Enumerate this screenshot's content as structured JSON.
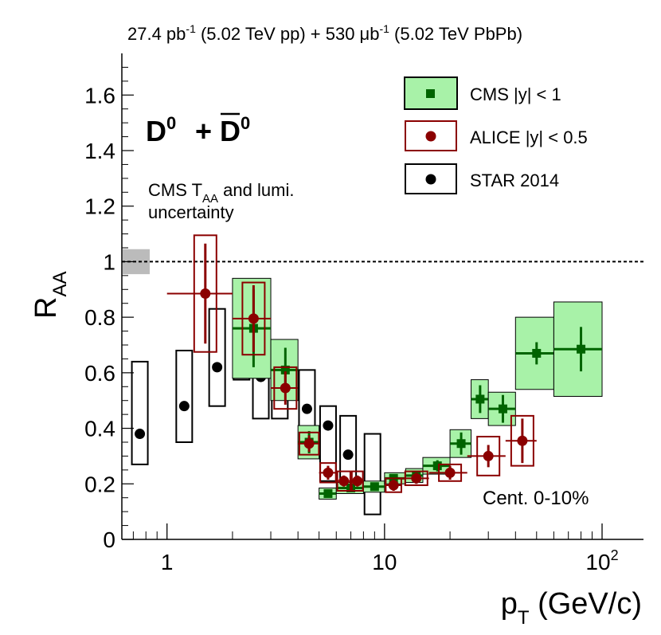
{
  "chart_data": {
    "type": "scatter",
    "top_label": {
      "part1": "27.4 pb",
      "sup1": "-1",
      "part2": " (5.02 TeV pp) + 530 μb",
      "sup2": "-1",
      "part3": " (5.02 TeV PbPb)"
    },
    "particle_label": {
      "base": "D",
      "sup": "0",
      "plus": "+",
      "bar_base": "D",
      "bar_sup": "0"
    },
    "tag_label_1": {
      "prefix": "CMS T",
      "sub": "AA",
      "suffix": " and lumi."
    },
    "tag_label_2": "uncertainty",
    "centrality": "Cent. 0-10%",
    "xlabel": {
      "base": "p",
      "sub": "T",
      "rest": " (GeV/c)"
    },
    "ylabel": {
      "base": "R",
      "sub": "AA"
    },
    "x_scale": "log",
    "xlim": [
      0.62,
      155
    ],
    "ylim": [
      0,
      1.75
    ],
    "x_major_ticks": [
      1,
      10,
      100
    ],
    "x_tick_labels": {
      "t1": "1",
      "t10": "10",
      "t100_base": "10",
      "t100_exp": "2"
    },
    "y_major_ticks": [
      0,
      0.2,
      0.4,
      0.6,
      0.8,
      1,
      1.2,
      1.4,
      1.6
    ],
    "y_tick_labels": [
      "0",
      "0.2",
      "0.4",
      "0.6",
      "0.8",
      "1",
      "1.2",
      "1.4",
      "1.6"
    ],
    "reference_line": 1,
    "global_uncertainty": {
      "center": 1,
      "half_height": 0.045,
      "color": "#bbbbbb"
    },
    "legend": [
      {
        "label": "CMS |y| < 1",
        "marker": "square",
        "marker_color": "#006400",
        "box_fill": "#a8f2a8",
        "box_stroke": "#000000"
      },
      {
        "label": "ALICE |y| < 0.5",
        "marker": "circle",
        "marker_color": "#8b0000",
        "box_fill": "none",
        "box_stroke": "#8b0000"
      },
      {
        "label": "STAR 2014",
        "marker": "circle",
        "marker_color": "#000000",
        "box_fill": "none",
        "box_stroke": "#000000"
      }
    ],
    "series": [
      {
        "name": "CMS |y| < 1",
        "color": "#006400",
        "sys_fill": "#a8f2a8",
        "sys_stroke": "#000000",
        "points": [
          {
            "x": 2.5,
            "y": 0.76,
            "xlo": 2.0,
            "xhi": 3.0,
            "stat": 0.14,
            "sys": 0.18
          },
          {
            "x": 3.5,
            "y": 0.61,
            "xlo": 3.0,
            "xhi": 4.0,
            "stat": 0.08,
            "sys": 0.11
          },
          {
            "x": 4.5,
            "y": 0.35,
            "xlo": 4.0,
            "xhi": 5.0,
            "stat": 0.04,
            "sys": 0.06
          },
          {
            "x": 5.5,
            "y": 0.165,
            "xlo": 5.0,
            "xhi": 6.0,
            "stat": 0.01,
            "sys": 0.02
          },
          {
            "x": 7.0,
            "y": 0.185,
            "xlo": 6.0,
            "xhi": 8.0,
            "stat": 0.01,
            "sys": 0.02
          },
          {
            "x": 9.0,
            "y": 0.19,
            "xlo": 8.0,
            "xhi": 10.0,
            "stat": 0.01,
            "sys": 0.02
          },
          {
            "x": 11.0,
            "y": 0.22,
            "xlo": 10.0,
            "xhi": 12.5,
            "stat": 0.01,
            "sys": 0.02
          },
          {
            "x": 14.0,
            "y": 0.23,
            "xlo": 12.5,
            "xhi": 15.0,
            "stat": 0.015,
            "sys": 0.025
          },
          {
            "x": 17.5,
            "y": 0.265,
            "xlo": 15.0,
            "xhi": 20.0,
            "stat": 0.02,
            "sys": 0.03
          },
          {
            "x": 22.5,
            "y": 0.345,
            "xlo": 20.0,
            "xhi": 25.0,
            "stat": 0.04,
            "sys": 0.05
          },
          {
            "x": 27.5,
            "y": 0.505,
            "xlo": 25.0,
            "xhi": 30.0,
            "stat": 0.05,
            "sys": 0.07
          },
          {
            "x": 35.0,
            "y": 0.47,
            "xlo": 30.0,
            "xhi": 40.0,
            "stat": 0.05,
            "sys": 0.06
          },
          {
            "x": 50.0,
            "y": 0.67,
            "xlo": 40.0,
            "xhi": 60.0,
            "stat": 0.04,
            "sys": 0.13
          },
          {
            "x": 80.0,
            "y": 0.685,
            "xlo": 60.0,
            "xhi": 100.0,
            "stat": 0.08,
            "sys": 0.17
          }
        ]
      },
      {
        "name": "ALICE |y| < 0.5",
        "color": "#8b0000",
        "sys_fill": "none",
        "sys_stroke": "#8b0000",
        "points": [
          {
            "x": 1.5,
            "y": 0.885,
            "xlo": 1.0,
            "xhi": 2.0,
            "stat": 0.18,
            "sys": 0.21,
            "box_half": 0.1
          },
          {
            "x": 2.5,
            "y": 0.795,
            "xlo": 2.0,
            "xhi": 3.0,
            "stat": 0.12,
            "sys": 0.13,
            "box_half": 0.1
          },
          {
            "x": 3.5,
            "y": 0.545,
            "xlo": 3.0,
            "xhi": 4.0,
            "stat": 0.06,
            "sys": 0.075,
            "box_half": 0.1
          },
          {
            "x": 4.5,
            "y": 0.345,
            "xlo": 4.0,
            "xhi": 5.0,
            "stat": 0.03,
            "sys": 0.04,
            "box_half": 0.1
          },
          {
            "x": 5.5,
            "y": 0.24,
            "xlo": 5.0,
            "xhi": 6.0,
            "stat": 0.025,
            "sys": 0.035,
            "box_half": 0.1
          },
          {
            "x": 6.5,
            "y": 0.21,
            "xlo": 6.0,
            "xhi": 7.0,
            "stat": 0.02,
            "sys": 0.035,
            "box_half": 0.1
          },
          {
            "x": 7.5,
            "y": 0.21,
            "xlo": 7.0,
            "xhi": 8.0,
            "stat": 0.02,
            "sys": 0.035,
            "box_half": 0.1
          },
          {
            "x": 11.0,
            "y": 0.195,
            "xlo": 10.0,
            "xhi": 12.0,
            "stat": 0.02,
            "sys": 0.025,
            "box_half": 0.1
          },
          {
            "x": 14.0,
            "y": 0.22,
            "xlo": 12.0,
            "xhi": 16.0,
            "stat": 0.02,
            "sys": 0.025,
            "box_half": 0.1
          },
          {
            "x": 20.0,
            "y": 0.24,
            "xlo": 16.0,
            "xhi": 24.0,
            "stat": 0.025,
            "sys": 0.03,
            "box_half": 0.1
          },
          {
            "x": 30.0,
            "y": 0.3,
            "xlo": 24.0,
            "xhi": 36.0,
            "stat": 0.04,
            "sys": 0.07,
            "box_half": 0.1
          },
          {
            "x": 43.0,
            "y": 0.355,
            "xlo": 36.0,
            "xhi": 50.0,
            "stat": 0.08,
            "sys": 0.09,
            "box_half": 0.1
          }
        ]
      },
      {
        "name": "STAR 2014",
        "color": "#000000",
        "sys_fill": "none",
        "sys_stroke": "#000000",
        "points": [
          {
            "x": 0.75,
            "y": 0.38,
            "stat": 0.0,
            "sys_lo": 0.11,
            "sys_hi": 0.26,
            "box_half": 0.1
          },
          {
            "x": 1.2,
            "y": 0.48,
            "stat": 0.0,
            "sys_lo": 0.13,
            "sys_hi": 0.2,
            "box_half": 0.1
          },
          {
            "x": 1.7,
            "y": 0.62,
            "stat": 0.0,
            "sys_lo": 0.14,
            "sys_hi": 0.21,
            "box_half": 0.1
          },
          {
            "x": 2.2,
            "y": 0.685,
            "stat": 0.0,
            "sys_lo": 0.11,
            "sys_hi": 0.23,
            "box_half": 0.1
          },
          {
            "x": 2.7,
            "y": 0.585,
            "stat": 0.0,
            "sys_lo": 0.15,
            "sys_hi": 0.21,
            "box_half": 0.1
          },
          {
            "x": 3.3,
            "y": 0.535,
            "stat": 0.0,
            "sys_lo": 0.1,
            "sys_hi": 0.08,
            "box_half": 0.1
          },
          {
            "x": 4.4,
            "y": 0.47,
            "stat": 0.0,
            "sys_lo": 0.12,
            "sys_hi": 0.14,
            "box_half": 0.1
          },
          {
            "x": 5.5,
            "y": 0.41,
            "stat": 0.0,
            "sys_lo": 0.2,
            "sys_hi": 0.07,
            "box_half": 0.1
          },
          {
            "x": 6.8,
            "y": 0.305,
            "stat": 0.0,
            "sys_lo": 0.13,
            "sys_hi": 0.14,
            "box_half": 0.1
          },
          {
            "x": 8.8,
            "y": 0.19,
            "stat": 0.0,
            "sys_lo": 0.1,
            "sys_hi": 0.19,
            "box_half": 0.1
          }
        ]
      }
    ]
  }
}
